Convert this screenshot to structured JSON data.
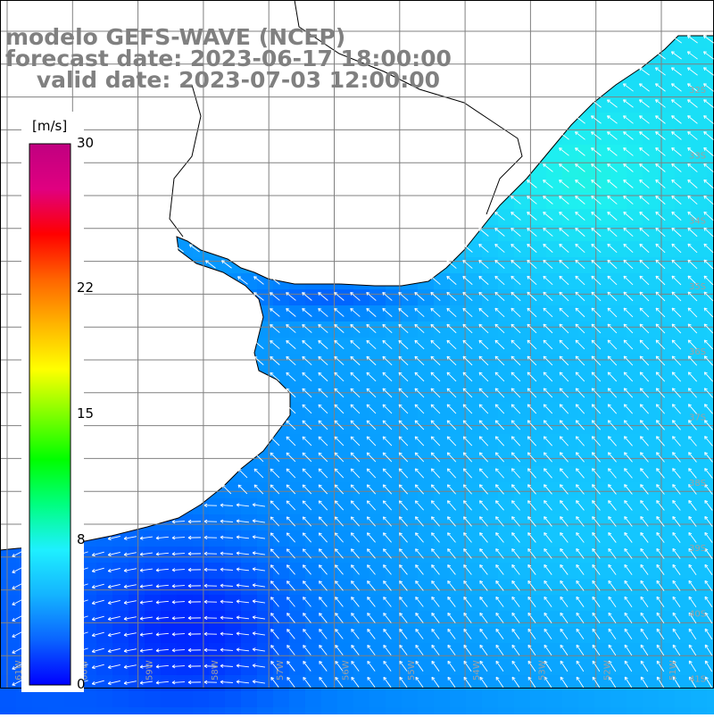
{
  "title": {
    "line1": "modelo GEFS-WAVE (NCEP)",
    "line2": "forecast date: 2023-06-17 18:00:00",
    "line3": "    valid date: 2023-07-03 12:00:00"
  },
  "colorbar": {
    "unit": "[m/s]",
    "ticks": [
      {
        "label": "30",
        "value": 30
      },
      {
        "label": "22",
        "value": 22
      },
      {
        "label": "15",
        "value": 15
      },
      {
        "label": "8",
        "value": 8
      },
      {
        "label": "0",
        "value": 0
      }
    ],
    "colors": [
      "#0000ff",
      "#0a64ff",
      "#14b4ff",
      "#1ef0ff",
      "#00ff80",
      "#00ff00",
      "#80ff00",
      "#ffff00",
      "#ffb400",
      "#ff6400",
      "#ff0000",
      "#e00080",
      "#c00080"
    ]
  },
  "map": {
    "land_color": "#ffffff",
    "grid_color": "#808080",
    "coast_color": "#000000",
    "arrow_color": "#ffffff",
    "lat_labels": [
      "32S",
      "33S",
      "34S",
      "35S",
      "36S",
      "37S",
      "38S",
      "39S",
      "40S",
      "41S"
    ],
    "lon_labels": [
      "61W",
      "60W",
      "59W",
      "58W",
      "57W",
      "56W",
      "55W",
      "54W",
      "53W",
      "52W",
      "51W"
    ],
    "wind_speed_range_ms": [
      4,
      9
    ]
  }
}
